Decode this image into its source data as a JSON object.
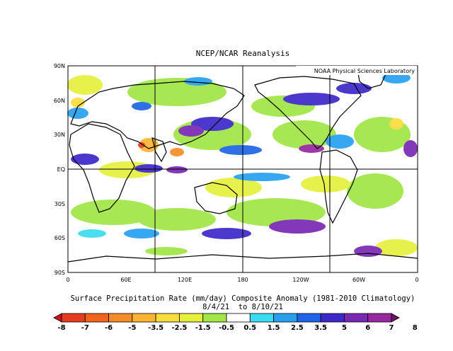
{
  "title": "NCEP/NCAR Reanalysis",
  "credit": "NOAA Physical Sciences Laboratory",
  "caption_line1": "Surface Precipitation Rate (mm/day) Composite Anomaly (1981-2010 Climatology)",
  "caption_line2": "8/4/21  to 8/10/21",
  "lat_labels": [
    "90N",
    "60N",
    "30N",
    "EQ",
    "30S",
    "60S",
    "90S"
  ],
  "lon_labels": [
    "0",
    "60E",
    "120E",
    "180",
    "120W",
    "60W",
    "0"
  ],
  "colorbar": {
    "labels": [
      "-8",
      "-7",
      "-6",
      "-5",
      "-3.5",
      "-2.5",
      "-1.5",
      "-0.5",
      "0.5",
      "1.5",
      "2.5",
      "3.5",
      "5",
      "6",
      "7",
      "8"
    ],
    "colors": [
      "#c8141e",
      "#e63c1e",
      "#f0641e",
      "#f58c28",
      "#fab432",
      "#fadc3c",
      "#e6f03c",
      "#a0e646",
      "#ffffff",
      "#3cdcf0",
      "#28a0f0",
      "#1e64e6",
      "#3c28c8",
      "#7828b4",
      "#9628a0",
      "#6e1464"
    ]
  }
}
